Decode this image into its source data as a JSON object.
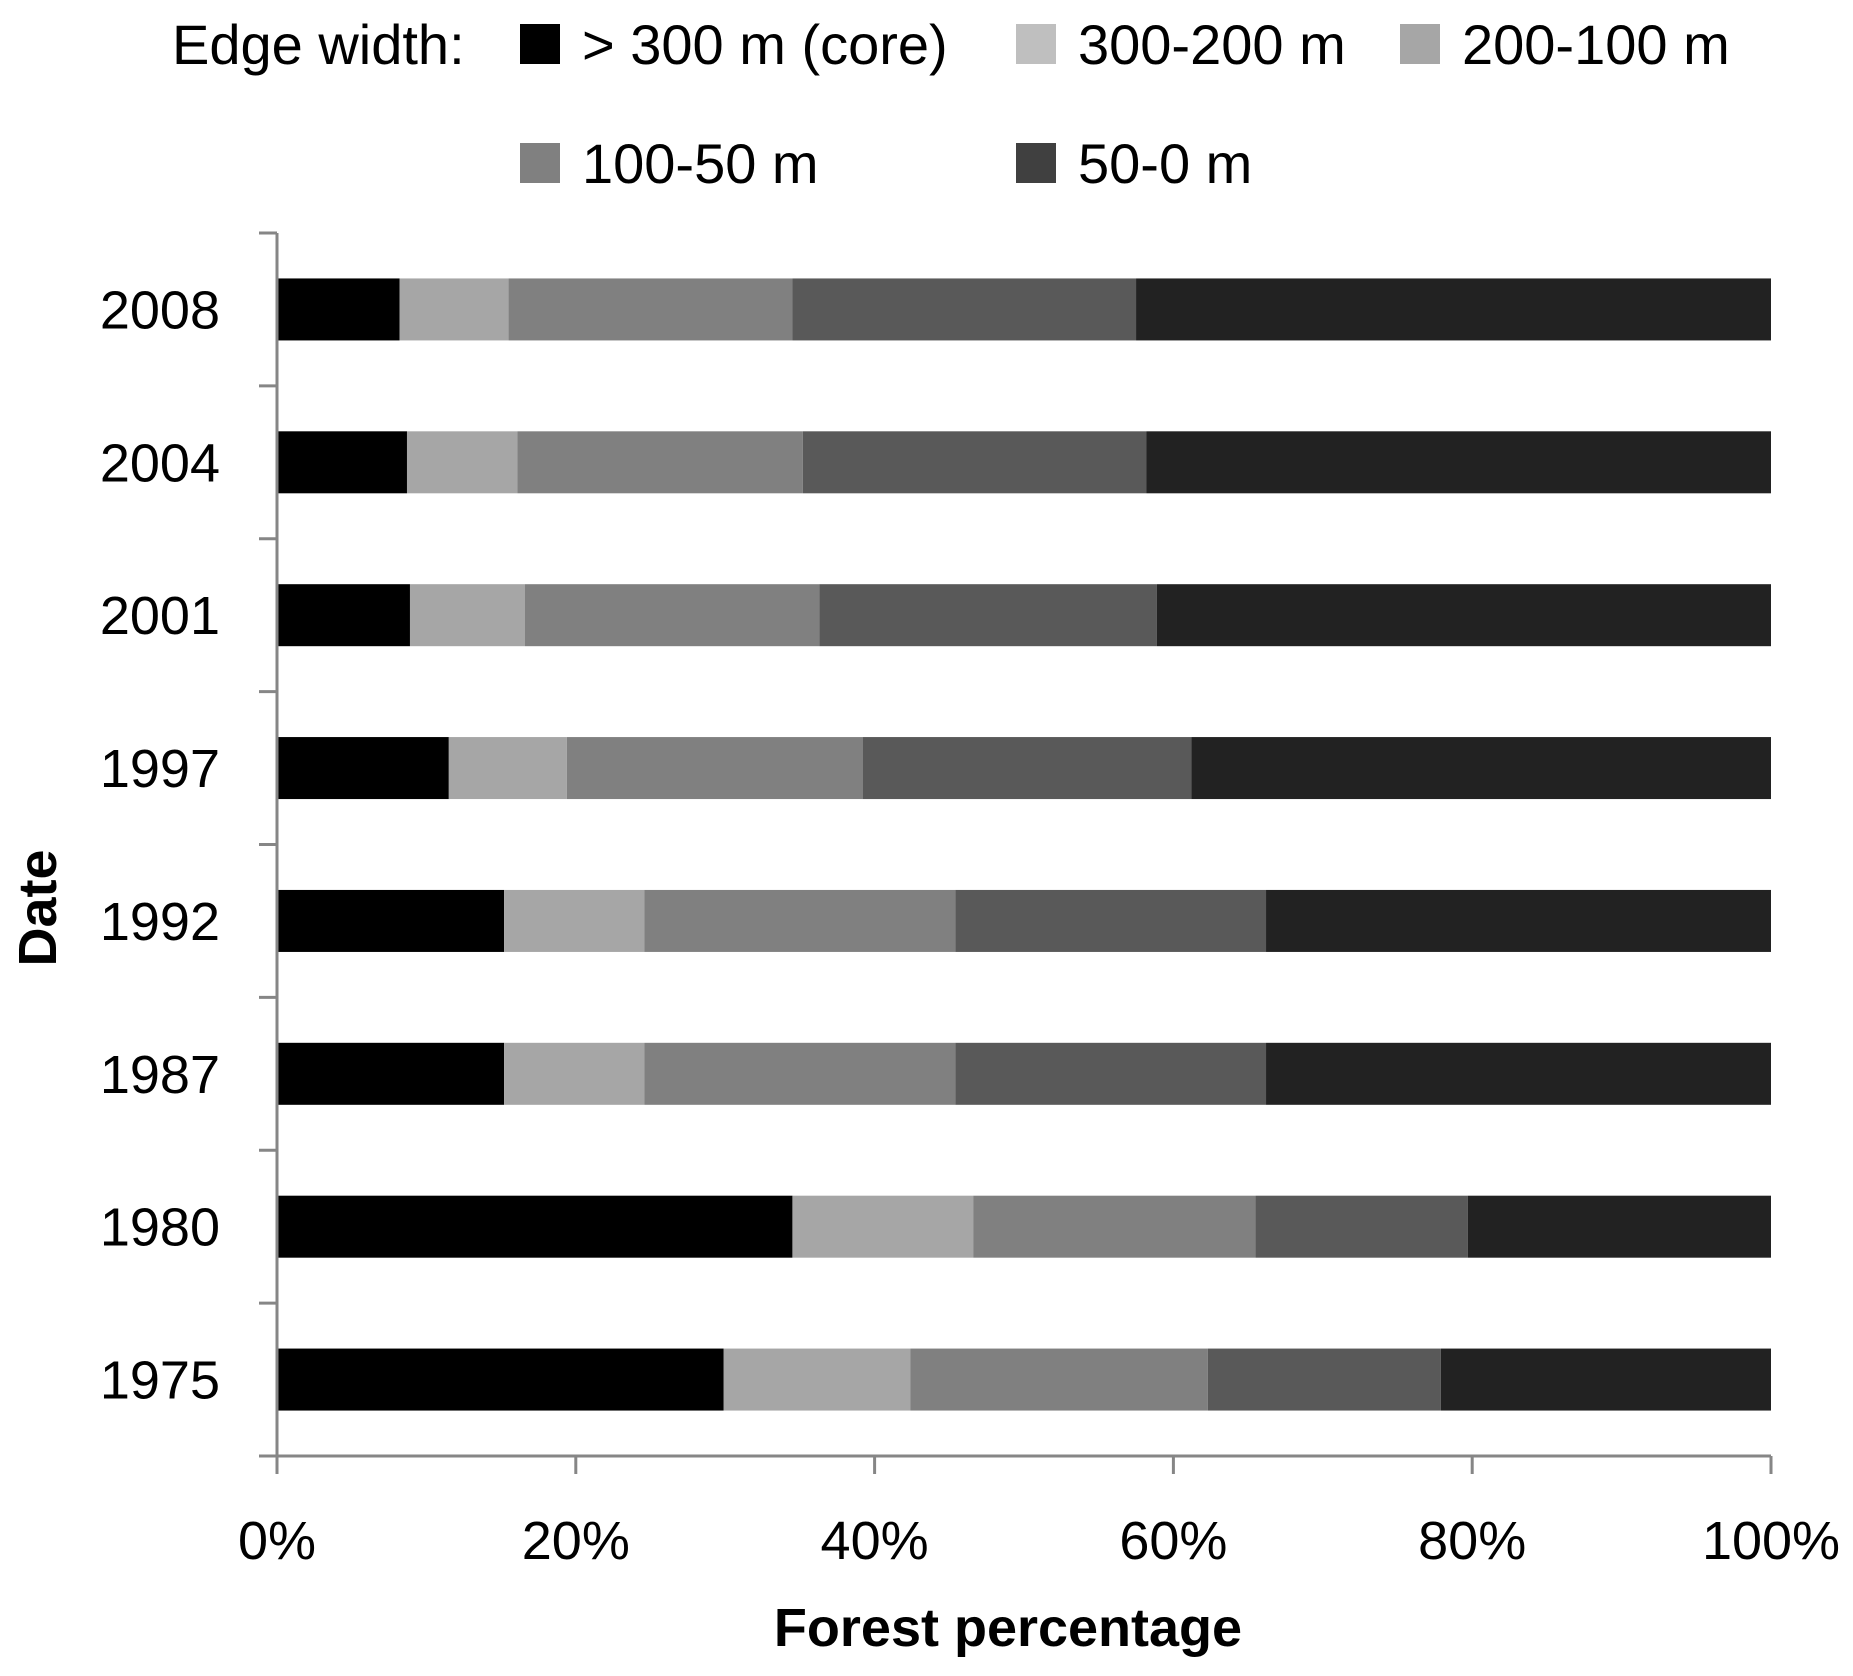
{
  "chart_data": {
    "type": "bar",
    "orientation": "horizontal",
    "stacked": true,
    "percent_stacked": true,
    "categories": [
      "2008",
      "2004",
      "2001",
      "1997",
      "1992",
      "1987",
      "1980",
      "1975"
    ],
    "series": [
      {
        "name": "> 300 m (core)",
        "color": "#000000",
        "values": [
          8.2,
          8.7,
          8.9,
          11.5,
          15.2,
          15.2,
          34.5,
          29.9
        ]
      },
      {
        "name": "300-200  m",
        "color": "#a6a6a6",
        "values": [
          7.3,
          7.4,
          7.7,
          7.9,
          9.4,
          9.4,
          12.1,
          12.5
        ]
      },
      {
        "name": "200-100  m",
        "color": "#808080",
        "values": [
          19.0,
          19.1,
          19.7,
          19.8,
          20.8,
          20.8,
          18.9,
          19.9
        ]
      },
      {
        "name": "100-50  m",
        "color": "#595959",
        "values": [
          23.0,
          23.0,
          22.6,
          22.0,
          20.8,
          20.8,
          14.2,
          15.6
        ]
      },
      {
        "name": "50-0  m",
        "color": "#222222",
        "values": [
          42.5,
          41.8,
          41.1,
          38.8,
          33.8,
          33.8,
          20.3,
          22.1
        ]
      }
    ],
    "legend_title": "Edge width:",
    "legend_swatch_colors": [
      "#000000",
      "#bfbfbf",
      "#a6a6a6",
      "#808080",
      "#404040"
    ],
    "legend_position": "top",
    "xlabel": "Forest percentage",
    "ylabel": "Date",
    "xlim": [
      0,
      100
    ],
    "xticks": [
      0,
      20,
      40,
      60,
      80,
      100
    ],
    "xtick_labels": [
      "0%",
      "20%",
      "40%",
      "60%",
      "80%",
      "100%"
    ],
    "grid": false,
    "axis_color": "#868686"
  }
}
